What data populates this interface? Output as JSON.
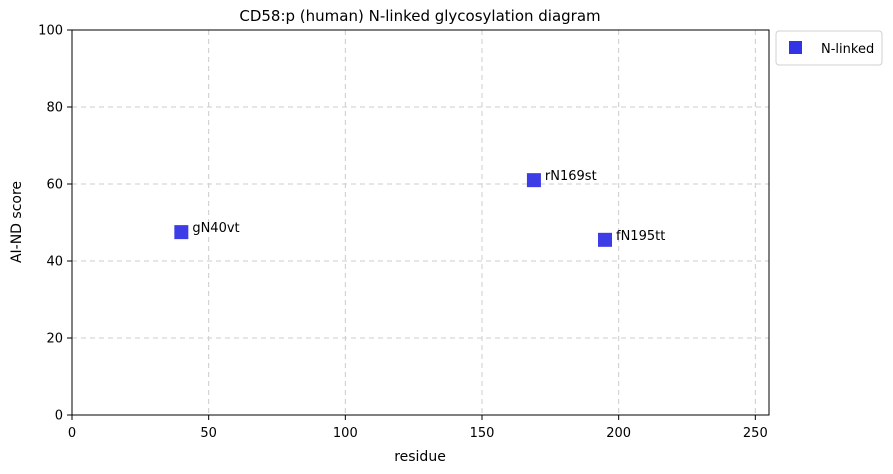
{
  "chart_data": {
    "type": "scatter",
    "title": "CD58:p (human) N-linked glycosylation diagram",
    "xlabel": "residue",
    "ylabel": "AI-ND score",
    "xlim": [
      0,
      255
    ],
    "ylim": [
      0,
      100
    ],
    "xticks": [
      "0",
      "50",
      "100",
      "150",
      "200",
      "250"
    ],
    "yticks": [
      "0",
      "20",
      "40",
      "60",
      "80",
      "100"
    ],
    "grid": true,
    "legend_position": "outside-top-right",
    "series": [
      {
        "name": "N-linked",
        "color": "#3333e6",
        "marker": "square",
        "points": [
          {
            "x": 40,
            "y": 47.5,
            "label": "gN40vt"
          },
          {
            "x": 169,
            "y": 61,
            "label": "rN169st"
          },
          {
            "x": 195,
            "y": 45.5,
            "label": "fN195tt"
          }
        ]
      }
    ]
  }
}
